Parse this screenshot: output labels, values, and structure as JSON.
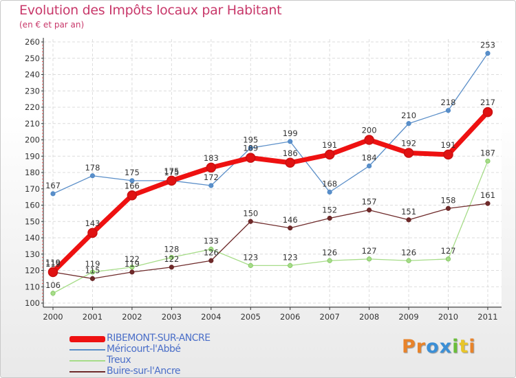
{
  "header": {
    "title": "Evolution des Impôts locaux par Habitant",
    "subtitle": "(en € et par an)"
  },
  "logo": {
    "text": "Proxiti",
    "letters": [
      "P",
      "r",
      "o",
      "x",
      "i",
      "t",
      "i"
    ],
    "colors": [
      "#e8832a",
      "#e8832a",
      "#3b8fd6",
      "#3b8fd6",
      "#6abe3a",
      "#e8c52a",
      "#e8832a"
    ]
  },
  "chart_data": {
    "type": "line",
    "title": "Evolution des Impôts locaux par Habitant",
    "subtitle": "(en € et par an)",
    "xlabel": "",
    "ylabel": "",
    "categories": [
      "2000",
      "2001",
      "2002",
      "2003",
      "2004",
      "2005",
      "2006",
      "2007",
      "2008",
      "2009",
      "2010",
      "2011"
    ],
    "ylim": [
      100,
      260
    ],
    "yticks": [
      "100",
      "110",
      "120",
      "130",
      "140",
      "150",
      "160",
      "170",
      "180",
      "190",
      "200",
      "210",
      "220",
      "230",
      "240",
      "250",
      "260"
    ],
    "grid": true,
    "legend_position": "bottom-left",
    "series": [
      {
        "name": "Méricourt-l'Abbé",
        "color": "#5a8ec8",
        "marker": "#4a88c8",
        "values": [
          167,
          178,
          175,
          175,
          172,
          195,
          199,
          168,
          184,
          210,
          218,
          253
        ],
        "labels": [
          "167",
          "178",
          "175",
          "175",
          "172",
          "195",
          "199",
          "168",
          "184",
          "210",
          "218",
          "253"
        ]
      },
      {
        "name": "Treux",
        "color": "#a6dc88",
        "marker": "#7cc45a",
        "values": [
          106,
          119,
          122,
          128,
          133,
          123,
          123,
          126,
          127,
          126,
          127,
          187
        ],
        "labels": [
          "106",
          "119",
          "122",
          "128",
          "133",
          "123",
          "123",
          "126",
          "127",
          "126",
          "127",
          "187"
        ]
      },
      {
        "name": "Buire-sur-l'Ancre",
        "color": "#6e2a2a",
        "marker": "#6a2424",
        "values": [
          119,
          115,
          119,
          122,
          126,
          150,
          146,
          152,
          157,
          151,
          158,
          161
        ],
        "labels": [
          "119",
          "115",
          "119",
          "122",
          "126",
          "150",
          "146",
          "152",
          "157",
          "151",
          "158",
          "161"
        ]
      },
      {
        "name": "RIBEMONT-SUR-ANCRE",
        "color": "#ee1111",
        "marker": "#c81010",
        "values": [
          119,
          143,
          166,
          175,
          183,
          189,
          186,
          191,
          200,
          192,
          191,
          217
        ],
        "labels": [
          "119",
          "143",
          "166",
          "175",
          "183",
          "189",
          "186",
          "191",
          "200",
          "192",
          "191",
          "217"
        ]
      }
    ]
  },
  "legend": {
    "items": [
      {
        "label": "RIBEMONT-SUR-ANCRE",
        "color": "#ee1111",
        "thickness": 9
      },
      {
        "label": "Méricourt-l'Abbé",
        "color": "#5a8ec8",
        "thickness": 2
      },
      {
        "label": "Treux",
        "color": "#a6dc88",
        "thickness": 2
      },
      {
        "label": "Buire-sur-l'Ancre",
        "color": "#6e2a2a",
        "thickness": 2
      }
    ]
  }
}
